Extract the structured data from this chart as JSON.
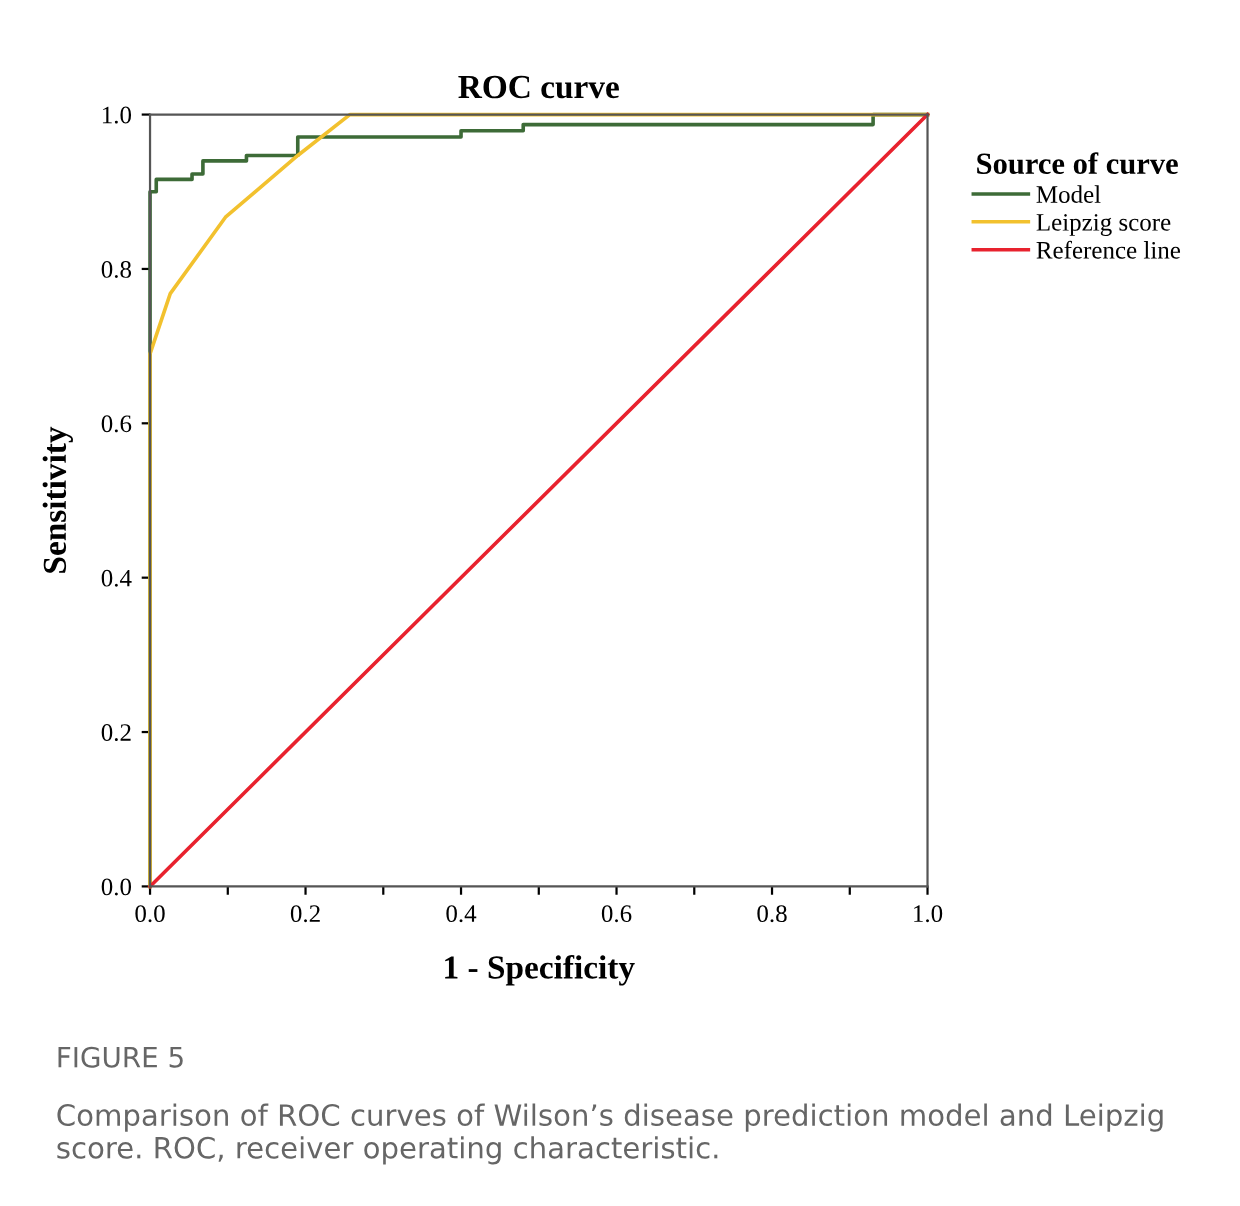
{
  "chart_data": {
    "type": "line",
    "title": "ROC curve",
    "xlabel": "1 - Specificity",
    "ylabel": "Sensitivity",
    "legend_title": "Source of curve",
    "series": [
      {
        "name": "Model",
        "type": "step",
        "color": "#3d6b37",
        "x": [
          0,
          0,
          0.008,
          0.054,
          0.068,
          0.124,
          0.19,
          0.4,
          0.48,
          0.93,
          1.0
        ],
        "values": [
          0,
          0.9,
          0.916,
          0.923,
          0.94,
          0.947,
          0.971,
          0.979,
          0.987,
          1.0,
          1.0
        ]
      },
      {
        "name": "Leipzig score",
        "type": "line",
        "color": "#f2c12e",
        "x": [
          0,
          0,
          0.026,
          0.097,
          0.19,
          0.257,
          1.0
        ],
        "values": [
          0,
          0.69,
          0.768,
          0.867,
          0.947,
          1.0,
          1.0
        ]
      },
      {
        "name": "Reference line",
        "color": "#e8222e",
        "x": [
          0,
          1
        ],
        "values": [
          0,
          1
        ]
      }
    ],
    "xlim": [
      0,
      1
    ],
    "ylim": [
      0,
      1
    ],
    "xticks": [
      {
        "value": 0.0,
        "label": "0.0"
      },
      {
        "value": 0.1,
        "label": null
      },
      {
        "value": 0.2,
        "label": "0.2"
      },
      {
        "value": 0.3,
        "label": null
      },
      {
        "value": 0.4,
        "label": "0.4"
      },
      {
        "value": 0.5,
        "label": null
      },
      {
        "value": 0.6,
        "label": "0.6"
      },
      {
        "value": 0.7,
        "label": null
      },
      {
        "value": 0.8,
        "label": "0.8"
      },
      {
        "value": 0.9,
        "label": null
      },
      {
        "value": 1.0,
        "label": "1.0"
      }
    ],
    "yticks": [
      {
        "value": 0.0,
        "label": "0.0"
      },
      {
        "value": 0.2,
        "label": "0.2"
      },
      {
        "value": 0.4,
        "label": "0.4"
      },
      {
        "value": 0.6,
        "label": "0.6"
      },
      {
        "value": 0.8,
        "label": "0.8"
      },
      {
        "value": 1.0,
        "label": "1.0"
      }
    ],
    "legend": "right",
    "grid": false,
    "annotations": [
      "FIGURE 5",
      "Comparison of ROC curves of Wilson’s disease prediction model and Leipzig score. ROC, receiver operating characteristic."
    ]
  }
}
